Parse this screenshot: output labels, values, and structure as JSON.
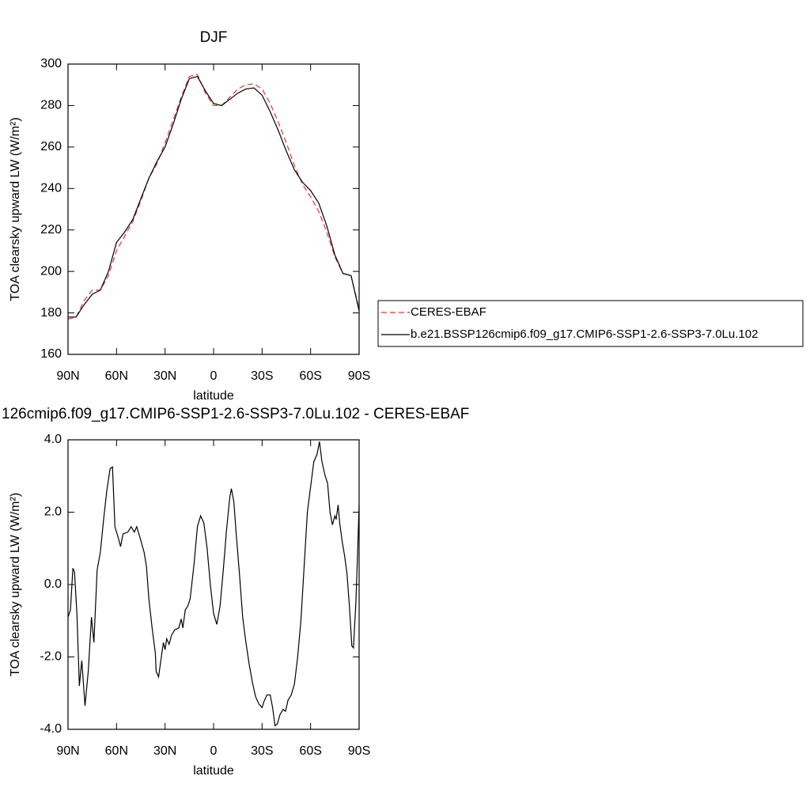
{
  "chart_data": [
    {
      "type": "line",
      "title": "DJF",
      "xlabel": "latitude",
      "ylabel": "TOA clearsky upward LW (W/m²)",
      "x": [
        90,
        85,
        80,
        75,
        70,
        65,
        60,
        55,
        50,
        45,
        40,
        35,
        30,
        25,
        20,
        15,
        10,
        5,
        0,
        -5,
        -10,
        -15,
        -20,
        -25,
        -30,
        -35,
        -40,
        -45,
        -50,
        -55,
        -60,
        -65,
        -70,
        -75,
        -80,
        -85,
        -90
      ],
      "series": [
        {
          "name": "CERES-EBAF",
          "color": "#e8312f",
          "line_style": "dashed",
          "values": [
            177,
            178,
            186,
            191,
            191,
            198,
            210,
            217,
            224,
            234,
            245,
            252,
            262,
            273,
            284,
            294,
            295,
            286,
            280,
            280,
            284,
            288,
            290,
            290.5,
            288,
            281,
            272,
            262,
            251,
            242,
            236,
            229,
            219,
            207,
            199,
            198,
            182
          ]
        },
        {
          "name": "b.e21.BSSP126cmip6.f09_g17.CMIP6-SSP1-2.6-SSP3-7.0Lu.102",
          "color": "#000000",
          "line_style": "solid",
          "values": [
            178,
            178,
            184,
            189,
            191,
            200,
            214,
            219,
            225,
            235,
            245,
            253,
            260,
            271,
            283,
            293,
            294,
            287,
            281,
            280,
            283,
            286,
            288,
            288.5,
            285,
            277,
            268,
            258,
            249,
            243,
            239,
            233,
            222,
            208,
            199,
            198,
            181
          ]
        }
      ],
      "xlim": [
        90,
        -90
      ],
      "xticks": [
        {
          "value": 90,
          "label": "90N"
        },
        {
          "value": 60,
          "label": "60N"
        },
        {
          "value": 30,
          "label": "30N"
        },
        0,
        {
          "value": -30,
          "label": "30S"
        },
        {
          "value": -60,
          "label": "60S"
        },
        {
          "value": -90,
          "label": "90S"
        }
      ],
      "ylim": [
        160,
        300
      ],
      "yticks": [
        160,
        180,
        200,
        220,
        240,
        260,
        280,
        300
      ],
      "legend": "right"
    },
    {
      "type": "line",
      "title": "126cmip6.f09_g17.CMIP6-SSP1-2.6-SSP3-7.0Lu.102 - CERES-EBAF",
      "xlabel": "latitude",
      "ylabel": "TOA clearsky upward LW (W/m²)",
      "x": [
        90,
        88.5,
        87,
        86,
        84.5,
        83,
        81.5,
        79.5,
        77.5,
        75.5,
        74,
        72,
        70,
        68,
        66,
        64,
        62.5,
        61,
        59,
        57.5,
        56,
        53,
        51,
        49,
        47.5,
        45.5,
        43,
        41.5,
        40,
        38,
        36,
        35.5,
        34,
        32,
        31,
        30,
        29,
        27.5,
        26,
        24,
        21.5,
        20,
        19,
        17.5,
        16,
        14.5,
        12,
        10,
        8,
        6,
        4,
        2,
        0,
        -2,
        -4,
        -6,
        -8,
        -10,
        -11,
        -12.5,
        -14,
        -16,
        -18,
        -20,
        -22,
        -24,
        -26,
        -28,
        -30,
        -31,
        -33,
        -35,
        -36.5,
        -38,
        -39.5,
        -41,
        -43,
        -44.5,
        -46,
        -48,
        -50,
        -52,
        -54,
        -56,
        -58,
        -60,
        -62,
        -64,
        -65.5,
        -67,
        -69,
        -70.5,
        -72,
        -73.5,
        -75,
        -75.8,
        -77,
        -78,
        -79.5,
        -81,
        -82.5,
        -84,
        -85.5,
        -86.5,
        -88,
        -89,
        -90
      ],
      "series": [
        {
          "color": "#000000",
          "values": [
            -0.9,
            -0.7,
            0.45,
            0.35,
            -0.8,
            -2.8,
            -2.1,
            -3.35,
            -2.4,
            -0.9,
            -1.6,
            0.4,
            0.9,
            1.8,
            2.6,
            3.2,
            3.25,
            1.6,
            1.3,
            1.05,
            1.4,
            1.45,
            1.6,
            1.45,
            1.6,
            1.3,
            0.9,
            0.5,
            -0.4,
            -1.2,
            -1.9,
            -2.4,
            -2.55,
            -1.9,
            -1.6,
            -1.8,
            -1.5,
            -1.65,
            -1.4,
            -1.25,
            -1.2,
            -0.95,
            -1.2,
            -0.7,
            -0.6,
            -0.4,
            0.6,
            1.6,
            1.9,
            1.7,
            1.0,
            0.0,
            -0.8,
            -1.1,
            -0.6,
            0.4,
            1.5,
            2.4,
            2.65,
            2.3,
            1.4,
            0.3,
            -0.9,
            -1.6,
            -2.2,
            -2.7,
            -3.1,
            -3.3,
            -3.4,
            -3.25,
            -3.05,
            -3.05,
            -3.4,
            -3.9,
            -3.85,
            -3.6,
            -3.45,
            -3.5,
            -3.2,
            -3.05,
            -2.75,
            -2.0,
            -1.0,
            0.5,
            2.0,
            2.7,
            3.4,
            3.6,
            3.95,
            3.4,
            3.0,
            2.8,
            2.0,
            1.65,
            1.9,
            1.8,
            2.2,
            1.7,
            1.2,
            0.8,
            0.3,
            -0.6,
            -1.7,
            -1.75,
            -0.5,
            0.8,
            2.2
          ]
        }
      ],
      "xlim": [
        90,
        -90
      ],
      "xticks": [
        {
          "value": 90,
          "label": "90N"
        },
        {
          "value": 60,
          "label": "60N"
        },
        {
          "value": 30,
          "label": "30N"
        },
        0,
        {
          "value": -30,
          "label": "30S"
        },
        {
          "value": -60,
          "label": "60S"
        },
        {
          "value": -90,
          "label": "90S"
        }
      ],
      "ylim": [
        -4,
        4
      ],
      "yticks": [
        {
          "value": -4,
          "label": "-4.0"
        },
        {
          "value": -2,
          "label": "-2.0"
        },
        {
          "value": 0,
          "label": "0.0"
        },
        {
          "value": 2,
          "label": "2.0"
        },
        {
          "value": 4,
          "label": "4.0"
        }
      ]
    }
  ]
}
